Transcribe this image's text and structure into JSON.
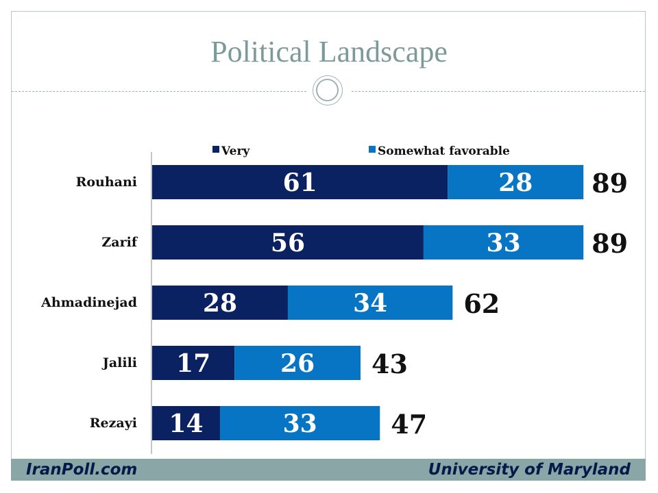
{
  "slide": {
    "title": "Political Landscape",
    "footer_left": "IranPoll.com",
    "footer_right": "University of Maryland"
  },
  "colors": {
    "very": "#0b2262",
    "somewhat": "#0775c3",
    "title": "#7d9a9a",
    "footer_band": "#8aa6a6"
  },
  "chart_data": {
    "type": "bar",
    "orientation": "horizontal",
    "stacked": true,
    "title": "",
    "xlabel": "",
    "ylabel": "",
    "categories": [
      "Rouhani",
      "Zarif",
      "Ahmadinejad",
      "Jalili",
      "Rezayi"
    ],
    "series": [
      {
        "name": "Very",
        "values": [
          61,
          56,
          28,
          17,
          14
        ]
      },
      {
        "name": "Somewhat favorable",
        "values": [
          28,
          33,
          34,
          26,
          33
        ]
      }
    ],
    "totals": [
      "89",
      "89",
      "62",
      "43",
      "47"
    ],
    "legend_position": "top",
    "grid": false
  }
}
